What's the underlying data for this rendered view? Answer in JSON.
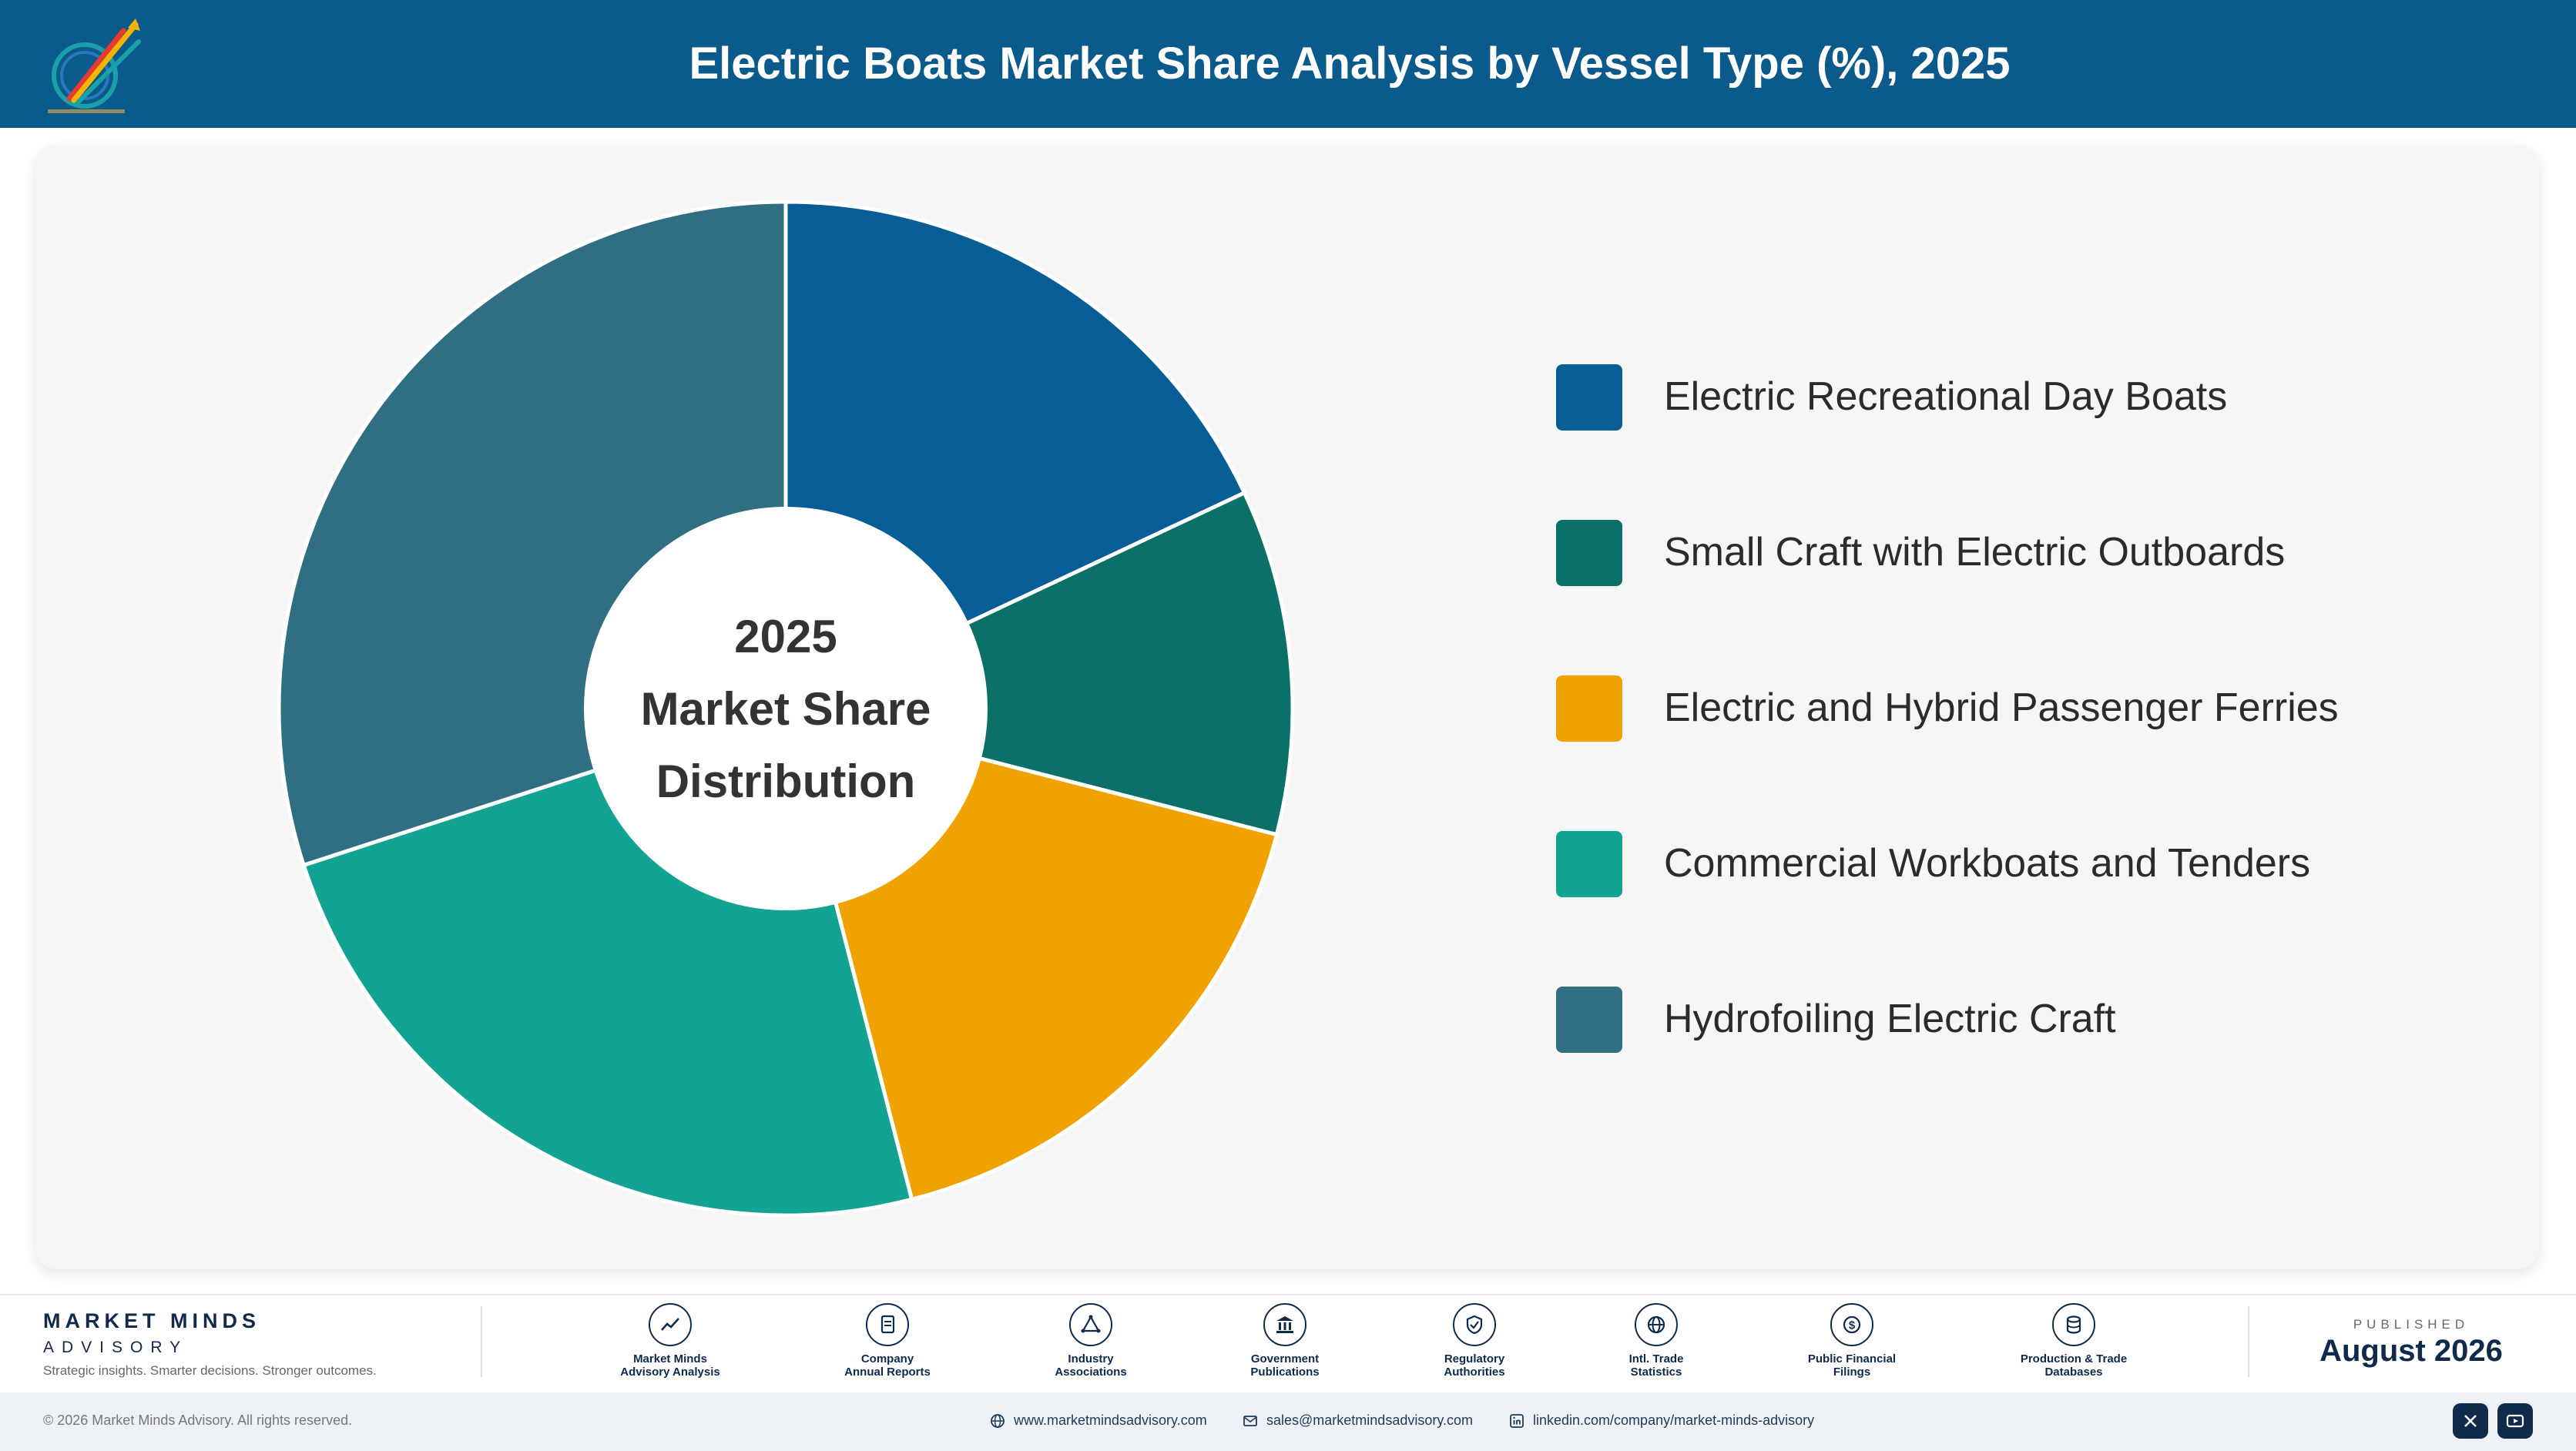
{
  "header": {
    "title": "Electric Boats Market Share Analysis by Vessel Type (%), 2025"
  },
  "chart_data": {
    "type": "pie",
    "variant": "donut",
    "title": "Electric Boats Market Share Analysis by Vessel Type (%), 2025",
    "center_label": [
      "2025",
      "Market Share",
      "Distribution"
    ],
    "legend_position": "right",
    "categories": [
      "Electric Recreational Day Boats",
      "Small Craft with Electric Outboards",
      "Electric and Hybrid Passenger Ferries",
      "Commercial Workboats and Tenders",
      "Hydrofoiling Electric Craft"
    ],
    "values": [
      18,
      11,
      17,
      24,
      30
    ],
    "colors": [
      "#075e96",
      "#0b7068",
      "#f0a300",
      "#12a392",
      "#306e83"
    ]
  },
  "footer": {
    "brand_line1": "MARKET MINDS",
    "brand_line2": "ADVISORY",
    "tagline": "Strategic insights. Smarter decisions. Stronger outcomes.",
    "sources": [
      {
        "icon": "chart-line-icon",
        "label_line1": "Market Minds",
        "label_line2": "Advisory Analysis"
      },
      {
        "icon": "document-icon",
        "label_line1": "Company",
        "label_line2": "Annual Reports"
      },
      {
        "icon": "network-icon",
        "label_line1": "Industry",
        "label_line2": "Associations"
      },
      {
        "icon": "government-building-icon",
        "label_line1": "Government",
        "label_line2": "Publications"
      },
      {
        "icon": "shield-check-icon",
        "label_line1": "Regulatory",
        "label_line2": "Authorities"
      },
      {
        "icon": "globe-icon",
        "label_line1": "Intl. Trade",
        "label_line2": "Statistics"
      },
      {
        "icon": "dollar-coin-icon",
        "label_line1": "Public Financial",
        "label_line2": "Filings"
      },
      {
        "icon": "database-icon",
        "label_line1": "Production & Trade",
        "label_line2": "Databases"
      }
    ],
    "published_label": "PUBLISHED",
    "published_date": "August 2026",
    "copyright": "© 2026 Market Minds Advisory. All rights reserved.",
    "website": "www.marketmindsadvisory.com",
    "email": "sales@marketmindsadvisory.com",
    "linkedin": "linkedin.com/company/market-minds-advisory"
  }
}
